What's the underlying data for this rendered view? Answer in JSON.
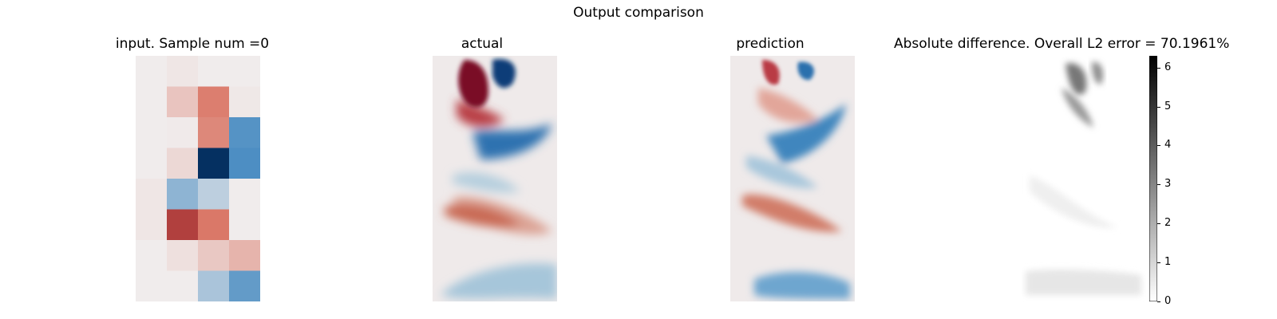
{
  "chart_data": {
    "type": "heatmap",
    "title": "Output comparison",
    "panels": [
      {
        "id": "input",
        "title": "input. Sample num =0",
        "colormap": "diverging-red-blue",
        "rows": 8,
        "cols": 4
      },
      {
        "id": "actual",
        "title": "actual",
        "colormap": "diverging-red-blue"
      },
      {
        "id": "prediction",
        "title": "prediction",
        "colormap": "diverging-red-blue"
      },
      {
        "id": "difference",
        "title": "Absolute difference. Overall L2 error = 70.1961%",
        "colormap": "gray-reversed",
        "colorbar_range": [
          0,
          6.3
        ]
      }
    ],
    "input_grid": [
      [
        0.0,
        0.03,
        0.0,
        0.0
      ],
      [
        0.0,
        0.2,
        0.55,
        0.02
      ],
      [
        0.0,
        0.01,
        0.5,
        -0.55
      ],
      [
        0.0,
        0.1,
        -1.0,
        -0.58
      ],
      [
        0.03,
        -0.35,
        -0.18,
        0.0
      ],
      [
        0.03,
        0.8,
        0.58,
        0.0
      ],
      [
        0.0,
        0.06,
        0.18,
        0.28
      ],
      [
        0.0,
        0.0,
        -0.25,
        -0.5
      ]
    ],
    "colorbar": {
      "ticks": [
        "0",
        "1",
        "2",
        "3",
        "4",
        "5",
        "6"
      ],
      "tick_values": [
        0,
        1,
        2,
        3,
        4,
        5,
        6
      ],
      "range": [
        0,
        6.3
      ]
    },
    "colors": {
      "neg_strong": "#053061",
      "neg": "#2b7bba",
      "neutral": "#f0ecec",
      "pos": "#d6604d",
      "pos_strong": "#67001f"
    }
  }
}
